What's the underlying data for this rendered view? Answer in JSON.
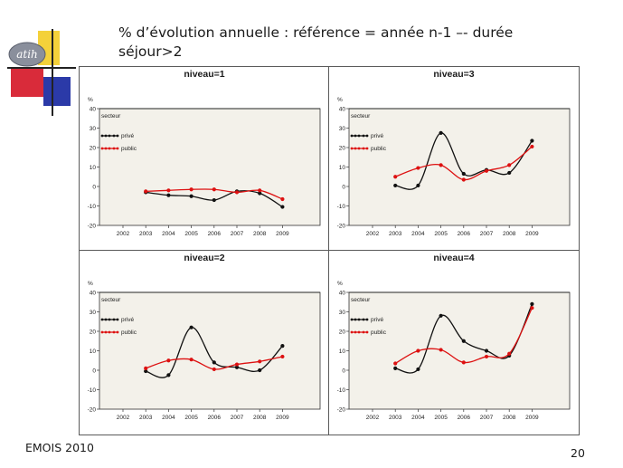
{
  "slide": {
    "title": "% d’évolution annuelle : référence = année n-1 –- durée séjour>2",
    "footer_left": "EMOIS 2010",
    "page_number": "20",
    "logo_text": "atih"
  },
  "colors": {
    "prive": "#111111",
    "public": "#dd1111",
    "plot_bg": "#f3f1ea"
  },
  "chart_data": [
    {
      "type": "line",
      "title": "niveau=1",
      "ylabel": "%",
      "ylim": [
        -20,
        40
      ],
      "yticks": [
        "40",
        "30",
        "20",
        "10",
        "0",
        "-10",
        "-20"
      ],
      "categories": [
        "2002",
        "2003",
        "2004",
        "2005",
        "2006",
        "2007",
        "2008",
        "2009"
      ],
      "legend_title": "secteur",
      "series": [
        {
          "name": "privé",
          "values": [
            null,
            -3,
            -4.5,
            -5,
            -7,
            -2.5,
            -3.5,
            -10.5
          ]
        },
        {
          "name": "public",
          "values": [
            null,
            -2.5,
            -2,
            -1.5,
            -1.5,
            -3,
            -2,
            -6.5
          ]
        }
      ]
    },
    {
      "type": "line",
      "title": "niveau=3",
      "ylabel": "%",
      "ylim": [
        -20,
        40
      ],
      "yticks": [
        "40",
        "30",
        "20",
        "10",
        "0",
        "-10",
        "-20"
      ],
      "categories": [
        "2002",
        "2003",
        "2004",
        "2005",
        "2006",
        "2007",
        "2008",
        "2009"
      ],
      "legend_title": "secteur",
      "series": [
        {
          "name": "privé",
          "values": [
            null,
            0.5,
            0.5,
            27.5,
            6.5,
            8.5,
            7,
            23.5
          ]
        },
        {
          "name": "public",
          "values": [
            null,
            5,
            9.5,
            11,
            3.5,
            8,
            11,
            20.5
          ]
        }
      ]
    },
    {
      "type": "line",
      "title": "niveau=2",
      "ylabel": "%",
      "ylim": [
        -20,
        40
      ],
      "yticks": [
        "40",
        "30",
        "20",
        "10",
        "0",
        "-10",
        "-20"
      ],
      "categories": [
        "2002",
        "2003",
        "2004",
        "2005",
        "2006",
        "2007",
        "2008",
        "2009"
      ],
      "legend_title": "secteur",
      "series": [
        {
          "name": "privé",
          "values": [
            null,
            -0.5,
            -2.5,
            22,
            4,
            1.5,
            0,
            12.5
          ]
        },
        {
          "name": "public",
          "values": [
            null,
            1,
            5,
            5.5,
            0.5,
            3,
            4.5,
            7
          ]
        }
      ]
    },
    {
      "type": "line",
      "title": "niveau=4",
      "ylabel": "%",
      "ylim": [
        -20,
        40
      ],
      "yticks": [
        "40",
        "30",
        "20",
        "10",
        "0",
        "-10",
        "-20"
      ],
      "categories": [
        "2002",
        "2003",
        "2004",
        "2005",
        "2006",
        "2007",
        "2008",
        "2009"
      ],
      "legend_title": "secteur",
      "series": [
        {
          "name": "privé",
          "values": [
            null,
            1,
            0.5,
            28,
            15,
            10,
            7.5,
            34
          ]
        },
        {
          "name": "public",
          "values": [
            null,
            3.5,
            10,
            10.5,
            4,
            7,
            8.5,
            32
          ]
        }
      ]
    }
  ]
}
